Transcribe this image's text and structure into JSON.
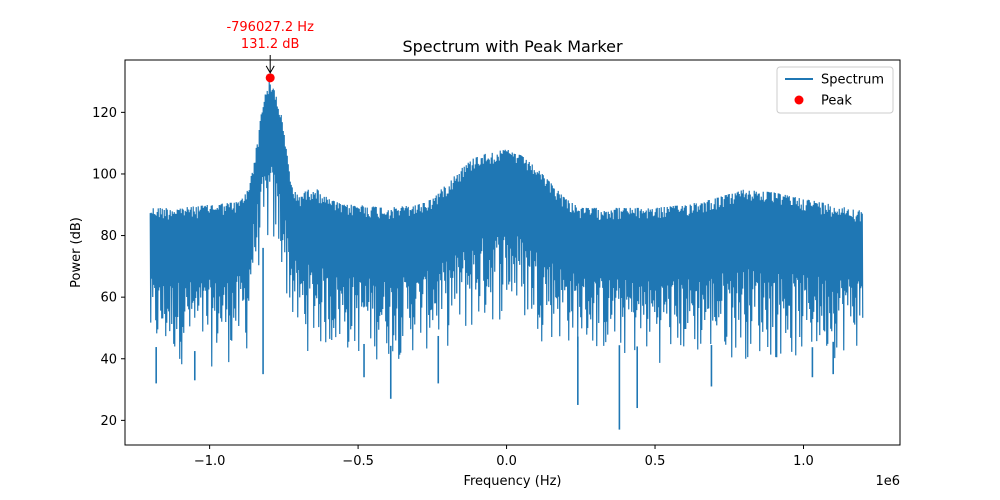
{
  "chart_data": {
    "type": "line",
    "title": "Spectrum with Peak Marker",
    "xlabel": "Frequency (Hz)",
    "ylabel": "Power (dB)",
    "x_offset_label": "1e6",
    "xlim": [
      -1285000,
      1325000
    ],
    "ylim": [
      12,
      137
    ],
    "x_ticks": [
      -1000000,
      -500000,
      0,
      500000,
      1000000
    ],
    "x_tick_labels": [
      "−1.0",
      "−0.5",
      "0.0",
      "0.5",
      "1.0"
    ],
    "y_ticks": [
      20,
      40,
      60,
      80,
      100,
      120
    ],
    "y_tick_labels": [
      "20",
      "40",
      "60",
      "80",
      "100",
      "120"
    ],
    "grid": false,
    "legend_position": "top-right",
    "legend": [
      {
        "label": "Spectrum",
        "kind": "line",
        "color": "#1f77b4"
      },
      {
        "label": "Peak",
        "kind": "marker",
        "color": "#ff0000"
      }
    ],
    "spectrum": {
      "name": "Spectrum",
      "color": "#1f77b4",
      "x_range": [
        -1200000,
        1200000
      ],
      "upper_envelope": {
        "x": [
          -1200000,
          -1100000,
          -1000000,
          -900000,
          -870000,
          -840000,
          -820000,
          -800000,
          -780000,
          -760000,
          -740000,
          -720000,
          -700000,
          -650000,
          -600000,
          -550000,
          -500000,
          -400000,
          -300000,
          -250000,
          -200000,
          -150000,
          -100000,
          -50000,
          0,
          50000,
          100000,
          150000,
          200000,
          250000,
          300000,
          400000,
          500000,
          600000,
          700000,
          800000,
          900000,
          1000000,
          1100000,
          1200000
        ],
        "y": [
          89,
          89,
          90,
          91,
          95,
          110,
          124,
          130,
          127,
          120,
          107,
          95,
          93,
          96,
          92,
          90,
          90,
          89,
          90,
          92,
          97,
          102,
          106,
          107,
          108,
          106,
          102,
          97,
          92,
          89,
          89,
          89,
          89,
          90,
          92,
          95,
          94,
          92,
          90,
          88
        ]
      },
      "lower_envelope": {
        "x": [
          -1200000,
          -1000000,
          -900000,
          -870000,
          -860000,
          -840000,
          -800000,
          -760000,
          -740000,
          -720000,
          -700000,
          -600000,
          -400000,
          -200000,
          -100000,
          0,
          100000,
          200000,
          400000,
          600000,
          800000,
          1000000,
          1200000
        ],
        "y": [
          38,
          36,
          38,
          40,
          57,
          66,
          74,
          66,
          57,
          48,
          42,
          40,
          38,
          42,
          46,
          52,
          46,
          42,
          38,
          38,
          39,
          37,
          42
        ]
      },
      "deep_dips": {
        "x": [
          -1180000,
          -1050000,
          -820000,
          -480000,
          -390000,
          -230000,
          240000,
          380000,
          440000,
          690000,
          1030000,
          1100000
        ],
        "y": [
          32,
          33,
          35,
          34,
          27,
          32,
          25,
          17,
          24,
          31,
          34,
          35
        ]
      }
    },
    "peak": {
      "name": "Peak",
      "x": -796027.2,
      "y": 131.2,
      "color": "#ff0000",
      "annotation": "-796027.2 Hz\n131.2 dB"
    }
  }
}
